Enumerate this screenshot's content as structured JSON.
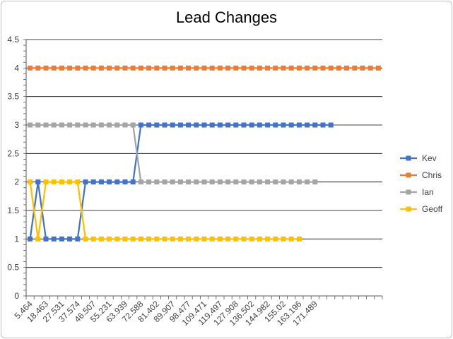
{
  "chart_data": {
    "type": "line",
    "title": "Lead Changes",
    "ylim": [
      0,
      4.5
    ],
    "yticks": [
      0,
      0.5,
      1,
      1.5,
      2,
      2.5,
      3,
      3.5,
      4,
      4.5
    ],
    "ytick_labels": [
      "0",
      "0.5",
      "1",
      "1.5",
      "2",
      "2.5",
      "3",
      "3.5",
      "4",
      "4.5"
    ],
    "x_tick_labels": [
      "5.464",
      "18.463",
      "27.531",
      "37.574",
      "46.507",
      "55.231",
      "63.939",
      "72.588",
      "81.402",
      "89.907",
      "98.477",
      "109.471",
      "119.497",
      "127.908",
      "136.502",
      "144.982",
      "155.02",
      "163.196",
      "171.489"
    ],
    "n_categories": 45,
    "grid": true,
    "legend_position": "right",
    "series": [
      {
        "name": "Kev",
        "color": "#4472c4",
        "values": [
          1,
          2,
          1,
          1,
          1,
          1,
          1,
          2,
          2,
          2,
          2,
          2,
          2,
          2,
          3,
          3,
          3,
          3,
          3,
          3,
          3,
          3,
          3,
          3,
          3,
          3,
          3,
          3,
          3,
          3,
          3,
          3,
          3,
          3,
          3,
          3,
          3,
          3,
          3
        ]
      },
      {
        "name": "Chris",
        "color": "#ed7d31",
        "values": [
          4,
          4,
          4,
          4,
          4,
          4,
          4,
          4,
          4,
          4,
          4,
          4,
          4,
          4,
          4,
          4,
          4,
          4,
          4,
          4,
          4,
          4,
          4,
          4,
          4,
          4,
          4,
          4,
          4,
          4,
          4,
          4,
          4,
          4,
          4,
          4,
          4,
          4,
          4,
          4,
          4,
          4,
          4,
          4,
          4
        ]
      },
      {
        "name": "Ian",
        "color": "#a5a5a5",
        "values": [
          3,
          3,
          3,
          3,
          3,
          3,
          3,
          3,
          3,
          3,
          3,
          3,
          3,
          3,
          2,
          2,
          2,
          2,
          2,
          2,
          2,
          2,
          2,
          2,
          2,
          2,
          2,
          2,
          2,
          2,
          2,
          2,
          2,
          2,
          2,
          2,
          2
        ]
      },
      {
        "name": "Geoff",
        "color": "#ffc000",
        "values": [
          2,
          1,
          2,
          2,
          2,
          2,
          2,
          1,
          1,
          1,
          1,
          1,
          1,
          1,
          1,
          1,
          1,
          1,
          1,
          1,
          1,
          1,
          1,
          1,
          1,
          1,
          1,
          1,
          1,
          1,
          1,
          1,
          1,
          1,
          1
        ]
      }
    ]
  }
}
